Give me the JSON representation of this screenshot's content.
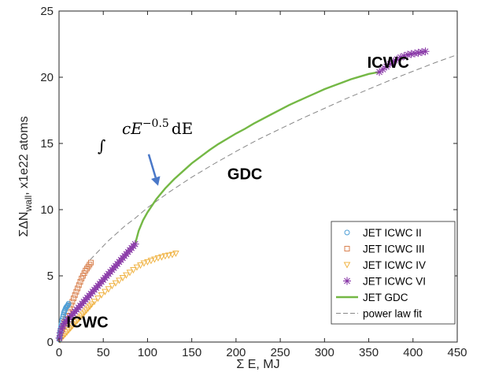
{
  "chart_data": {
    "type": "scatter",
    "xlabel": "Σ E,  MJ",
    "ylabel_main": "ΣΔN",
    "ylabel_sub": "wall",
    "ylabel_rest": ",  x1e22 atoms",
    "xlim": [
      0,
      450
    ],
    "ylim": [
      0,
      25
    ],
    "xticks": [
      0,
      50,
      100,
      150,
      200,
      250,
      300,
      350,
      400,
      450
    ],
    "yticks": [
      0,
      5,
      10,
      15,
      20,
      25
    ],
    "grid": false,
    "legend_position": "bottom-right",
    "annotations": [
      {
        "text": "GDC",
        "x": 210,
        "y": 12.3
      },
      {
        "text": "ICWC",
        "x": 372,
        "y": 20.7
      },
      {
        "text": "ICWC",
        "x": 32,
        "y": 1.1
      }
    ],
    "formula": {
      "integral": "∫",
      "body": "cE",
      "exponent": "−0.5",
      "dE": "dE",
      "arrow_to": {
        "x": 112,
        "y": 11.8
      }
    },
    "series": [
      {
        "name": "JET ICWC II",
        "marker": "circle",
        "color": "#4d9ed6",
        "x": [
          0.3,
          0.6,
          1.0,
          1.4,
          1.8,
          2.3,
          2.8,
          3.3,
          3.8,
          4.4,
          5.0,
          5.5,
          6.0,
          6.6,
          7.2,
          7.8,
          8.4,
          9.0,
          9.6,
          10.2,
          10.8
        ],
        "y": [
          0.2,
          0.4,
          0.6,
          0.8,
          1.0,
          1.2,
          1.4,
          1.6,
          1.75,
          1.9,
          2.05,
          2.2,
          2.3,
          2.4,
          2.5,
          2.6,
          2.65,
          2.7,
          2.75,
          2.8,
          2.9
        ]
      },
      {
        "name": "JET ICWC III",
        "marker": "square",
        "color": "#d98250",
        "x": [
          0.5,
          1.5,
          3,
          4.5,
          6,
          7.5,
          9,
          10.5,
          12,
          13.5,
          15,
          16.5,
          18,
          19.5,
          21,
          22.5,
          24,
          25.5,
          27,
          28.5,
          30,
          31.5,
          33,
          34.5,
          36
        ],
        "y": [
          0.3,
          0.6,
          0.9,
          1.2,
          1.5,
          1.75,
          2.0,
          2.3,
          2.55,
          2.8,
          3.05,
          3.3,
          3.55,
          3.8,
          4.05,
          4.3,
          4.55,
          4.8,
          5.0,
          5.2,
          5.4,
          5.55,
          5.7,
          5.85,
          6.0
        ]
      },
      {
        "name": "JET ICWC IV",
        "marker": "triangle-down",
        "color": "#f0b446",
        "x": [
          1,
          3,
          5,
          7,
          9,
          11,
          13,
          15,
          17,
          19,
          21,
          23,
          25,
          27,
          29,
          31,
          33,
          35,
          37,
          40,
          44,
          48,
          52,
          56,
          60,
          64,
          68,
          72,
          76,
          80,
          84,
          88,
          92,
          96,
          100,
          104,
          108,
          112,
          116,
          120,
          124,
          128,
          132
        ],
        "y": [
          0.15,
          0.3,
          0.45,
          0.6,
          0.75,
          0.9,
          1.05,
          1.2,
          1.35,
          1.5,
          1.65,
          1.8,
          1.95,
          2.1,
          2.25,
          2.4,
          2.55,
          2.7,
          2.85,
          3.05,
          3.3,
          3.55,
          3.8,
          4.0,
          4.25,
          4.45,
          4.65,
          4.85,
          5.05,
          5.25,
          5.45,
          5.65,
          5.8,
          5.95,
          6.05,
          6.15,
          6.25,
          6.35,
          6.42,
          6.5,
          6.55,
          6.6,
          6.7
        ]
      },
      {
        "name": "JET ICWC VI",
        "marker": "asterisk",
        "color": "#8a3aa8",
        "x": [
          0.5,
          1.5,
          3,
          4.5,
          6,
          8,
          10,
          12,
          14,
          16,
          18,
          20,
          22,
          24,
          26,
          28,
          30,
          32,
          34,
          36,
          38,
          40,
          42,
          44,
          46,
          48,
          50,
          52,
          54,
          56,
          58,
          60,
          62,
          64,
          66,
          68,
          70,
          72,
          74,
          76,
          78,
          80,
          82,
          84,
          86,
          362,
          366,
          370,
          374,
          378,
          382,
          386,
          390,
          394,
          398,
          402,
          406,
          410,
          414
        ],
        "y": [
          0.3,
          0.7,
          1.0,
          1.2,
          1.4,
          1.55,
          1.7,
          1.85,
          2.0,
          2.15,
          2.3,
          2.45,
          2.6,
          2.75,
          2.9,
          3.05,
          3.2,
          3.35,
          3.5,
          3.65,
          3.8,
          3.95,
          4.1,
          4.25,
          4.4,
          4.55,
          4.7,
          4.85,
          5.0,
          5.15,
          5.3,
          5.45,
          5.6,
          5.75,
          5.9,
          6.05,
          6.2,
          6.35,
          6.5,
          6.65,
          6.8,
          6.95,
          7.1,
          7.25,
          7.4,
          20.4,
          20.6,
          20.8,
          21.0,
          21.2,
          21.35,
          21.5,
          21.6,
          21.7,
          21.75,
          21.8,
          21.85,
          21.9,
          21.95
        ]
      },
      {
        "name": "JET GDC",
        "marker": "line",
        "color": "#74b845",
        "x": [
          86,
          90,
          95,
          100,
          110,
          120,
          130,
          140,
          150,
          160,
          170,
          180,
          190,
          200,
          210,
          220,
          230,
          240,
          250,
          260,
          270,
          280,
          290,
          300,
          310,
          320,
          330,
          340,
          350,
          362
        ],
        "y": [
          7.4,
          8.4,
          9.2,
          9.8,
          10.8,
          11.6,
          12.3,
          12.9,
          13.5,
          14.0,
          14.5,
          14.95,
          15.35,
          15.75,
          16.1,
          16.5,
          16.85,
          17.2,
          17.55,
          17.9,
          18.2,
          18.5,
          18.8,
          19.1,
          19.35,
          19.6,
          19.85,
          20.05,
          20.25,
          20.4
        ]
      },
      {
        "name": "power law fit",
        "marker": "dashed-line",
        "color": "#888888",
        "x": [
          35,
          45,
          55,
          65,
          75,
          85,
          100,
          125,
          150,
          175,
          200,
          225,
          250,
          275,
          300,
          325,
          350,
          375,
          400,
          425,
          450
        ],
        "y": [
          6.2,
          6.9,
          7.6,
          8.2,
          8.8,
          9.3,
          10.15,
          11.35,
          12.45,
          13.45,
          14.4,
          15.3,
          16.1,
          16.9,
          17.65,
          18.4,
          19.1,
          19.8,
          20.45,
          21.1,
          21.7
        ]
      }
    ]
  }
}
